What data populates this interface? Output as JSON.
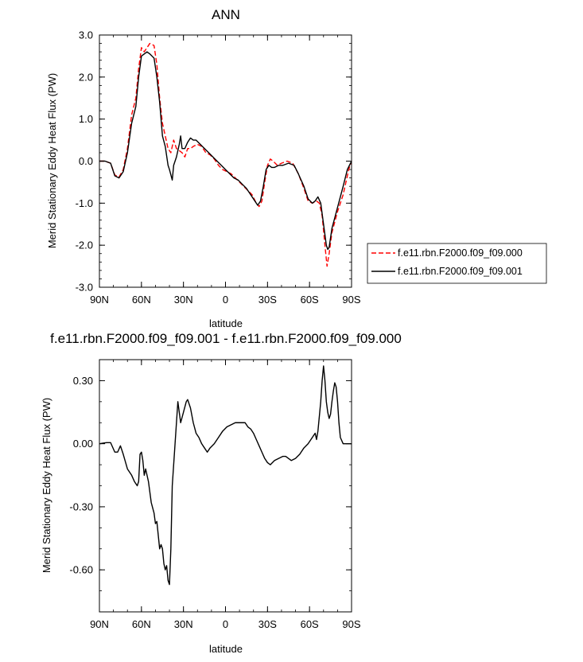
{
  "chart_data": [
    {
      "type": "line",
      "title": "ANN",
      "xlabel": "latitude",
      "ylabel": "Merid Stationary Eddy Heat Flux (PW)",
      "xlim": [
        90,
        -90
      ],
      "ylim": [
        -3.0,
        3.0
      ],
      "x_tick_values": [
        90,
        60,
        30,
        0,
        -30,
        -60,
        -90
      ],
      "x_tick_labels": [
        "90N",
        "60N",
        "30N",
        "0",
        "30S",
        "60S",
        "90S"
      ],
      "y_tick_values": [
        -3,
        -2,
        -1,
        0,
        1,
        2,
        3
      ],
      "y_tick_labels": [
        "-3.0",
        "-2.0",
        "-1.0",
        "0.0",
        "1.0",
        "2.0",
        "3.0"
      ],
      "legend_position": "right",
      "series": [
        {
          "name": "f.e11.rbn.F2000.f09_f09.000",
          "color": "#ff0000",
          "dash": "dashed",
          "points": [
            [
              90,
              0
            ],
            [
              86,
              0
            ],
            [
              82,
              -0.05
            ],
            [
              79,
              -0.33
            ],
            [
              76,
              -0.38
            ],
            [
              73,
              -0.2
            ],
            [
              70,
              0.3
            ],
            [
              67,
              1.1
            ],
            [
              64,
              1.5
            ],
            [
              62,
              2.2
            ],
            [
              60,
              2.7
            ],
            [
              58,
              2.6
            ],
            [
              56,
              2.7
            ],
            [
              54,
              2.8
            ],
            [
              51,
              2.75
            ],
            [
              49,
              2.3
            ],
            [
              47,
              1.5
            ],
            [
              45,
              0.9
            ],
            [
              43,
              0.6
            ],
            [
              41,
              0.3
            ],
            [
              39,
              0.2
            ],
            [
              37,
              0.5
            ],
            [
              35,
              0.3
            ],
            [
              33,
              0.25
            ],
            [
              31,
              0.2
            ],
            [
              29,
              0.1
            ],
            [
              27,
              0.3
            ],
            [
              25,
              0.3
            ],
            [
              23,
              0.35
            ],
            [
              20,
              0.4
            ],
            [
              17,
              0.35
            ],
            [
              14,
              0.2
            ],
            [
              11,
              0.15
            ],
            [
              8,
              0.05
            ],
            [
              5,
              -0.1
            ],
            [
              2,
              -0.2
            ],
            [
              -1,
              -0.25
            ],
            [
              -4,
              -0.3
            ],
            [
              -7,
              -0.4
            ],
            [
              -10,
              -0.5
            ],
            [
              -13,
              -0.6
            ],
            [
              -16,
              -0.7
            ],
            [
              -19,
              -0.8
            ],
            [
              -22,
              -1.0
            ],
            [
              -24,
              -1.08
            ],
            [
              -26,
              -0.95
            ],
            [
              -28,
              -0.5
            ],
            [
              -30,
              -0.1
            ],
            [
              -32,
              0.05
            ],
            [
              -34,
              0.0
            ],
            [
              -37,
              -0.1
            ],
            [
              -40,
              -0.05
            ],
            [
              -44,
              0.0
            ],
            [
              -48,
              -0.05
            ],
            [
              -52,
              -0.3
            ],
            [
              -56,
              -0.65
            ],
            [
              -59,
              -0.95
            ],
            [
              -62,
              -1.0
            ],
            [
              -65,
              -0.95
            ],
            [
              -67,
              -1.0
            ],
            [
              -69,
              -1.3
            ],
            [
              -71,
              -2.0
            ],
            [
              -72.5,
              -2.5
            ],
            [
              -74,
              -2.2
            ],
            [
              -76,
              -1.7
            ],
            [
              -80,
              -1.2
            ],
            [
              -84,
              -0.8
            ],
            [
              -88,
              -0.2
            ],
            [
              -90,
              0
            ]
          ]
        },
        {
          "name": "f.e11.rbn.F2000.f09_f09.001",
          "color": "#000000",
          "dash": "solid",
          "points": [
            [
              90,
              0
            ],
            [
              86,
              0
            ],
            [
              82,
              -0.05
            ],
            [
              79,
              -0.35
            ],
            [
              76,
              -0.4
            ],
            [
              73,
              -0.25
            ],
            [
              70,
              0.2
            ],
            [
              67,
              0.9
            ],
            [
              64,
              1.3
            ],
            [
              62,
              2.0
            ],
            [
              60,
              2.5
            ],
            [
              58,
              2.55
            ],
            [
              56,
              2.6
            ],
            [
              54,
              2.55
            ],
            [
              51,
              2.45
            ],
            [
              49,
              2.0
            ],
            [
              47,
              1.4
            ],
            [
              45,
              0.6
            ],
            [
              43,
              0.35
            ],
            [
              41,
              -0.1
            ],
            [
              40,
              -0.2
            ],
            [
              38,
              -0.45
            ],
            [
              37,
              -0.1
            ],
            [
              35,
              0.1
            ],
            [
              33,
              0.4
            ],
            [
              32,
              0.6
            ],
            [
              31,
              0.3
            ],
            [
              29,
              0.3
            ],
            [
              27,
              0.45
            ],
            [
              25,
              0.55
            ],
            [
              23,
              0.5
            ],
            [
              21,
              0.5
            ],
            [
              18,
              0.4
            ],
            [
              15,
              0.3
            ],
            [
              12,
              0.2
            ],
            [
              9,
              0.1
            ],
            [
              6,
              0.0
            ],
            [
              3,
              -0.1
            ],
            [
              0,
              -0.2
            ],
            [
              -3,
              -0.3
            ],
            [
              -6,
              -0.4
            ],
            [
              -9,
              -0.45
            ],
            [
              -12,
              -0.55
            ],
            [
              -15,
              -0.65
            ],
            [
              -18,
              -0.8
            ],
            [
              -21,
              -0.95
            ],
            [
              -23,
              -1.05
            ],
            [
              -25,
              -0.95
            ],
            [
              -27,
              -0.6
            ],
            [
              -29,
              -0.2
            ],
            [
              -31,
              -0.1
            ],
            [
              -33,
              -0.15
            ],
            [
              -35,
              -0.15
            ],
            [
              -38,
              -0.1
            ],
            [
              -41,
              -0.1
            ],
            [
              -45,
              -0.05
            ],
            [
              -49,
              -0.1
            ],
            [
              -52,
              -0.3
            ],
            [
              -56,
              -0.6
            ],
            [
              -59,
              -0.9
            ],
            [
              -62,
              -1.0
            ],
            [
              -64,
              -0.95
            ],
            [
              -66,
              -0.85
            ],
            [
              -68,
              -1.0
            ],
            [
              -70,
              -1.5
            ],
            [
              -72,
              -2.0
            ],
            [
              -73,
              -2.1
            ],
            [
              -74,
              -2.05
            ],
            [
              -76,
              -1.6
            ],
            [
              -80,
              -1.1
            ],
            [
              -84,
              -0.6
            ],
            [
              -87,
              -0.2
            ],
            [
              -90,
              0
            ]
          ]
        }
      ]
    },
    {
      "type": "line",
      "title": "f.e11.rbn.F2000.f09_f09.001 - f.e11.rbn.F2000.f09_f09.000",
      "xlabel": "latitude",
      "ylabel": "Merid Stationary Eddy Heat Flux (PW)",
      "xlim": [
        90,
        -90
      ],
      "ylim": [
        -0.8,
        0.4
      ],
      "x_tick_values": [
        90,
        60,
        30,
        0,
        -30,
        -60,
        -90
      ],
      "x_tick_labels": [
        "90N",
        "60N",
        "30N",
        "0",
        "30S",
        "60S",
        "90S"
      ],
      "y_tick_values": [
        -0.6,
        -0.3,
        0.0,
        0.3
      ],
      "y_tick_labels": [
        "-0.60",
        "-0.30",
        "0.00",
        "0.30"
      ],
      "series": [
        {
          "color": "#000000",
          "dash": "solid",
          "points": [
            [
              90,
              0
            ],
            [
              85,
              0.005
            ],
            [
              82,
              0.005
            ],
            [
              79,
              -0.04
            ],
            [
              77,
              -0.04
            ],
            [
              75,
              -0.01
            ],
            [
              73,
              -0.05
            ],
            [
              70,
              -0.12
            ],
            [
              67,
              -0.15
            ],
            [
              65,
              -0.18
            ],
            [
              63,
              -0.2
            ],
            [
              62,
              -0.18
            ],
            [
              61,
              -0.05
            ],
            [
              60,
              -0.04
            ],
            [
              59,
              -0.08
            ],
            [
              58,
              -0.15
            ],
            [
              57,
              -0.12
            ],
            [
              55,
              -0.18
            ],
            [
              53,
              -0.28
            ],
            [
              51,
              -0.33
            ],
            [
              50,
              -0.38
            ],
            [
              49,
              -0.37
            ],
            [
              47,
              -0.5
            ],
            [
              46,
              -0.48
            ],
            [
              45,
              -0.5
            ],
            [
              44,
              -0.57
            ],
            [
              43,
              -0.6
            ],
            [
              42,
              -0.58
            ],
            [
              41,
              -0.65
            ],
            [
              40,
              -0.67
            ],
            [
              39,
              -0.5
            ],
            [
              38,
              -0.2
            ],
            [
              36,
              0.0
            ],
            [
              35,
              0.1
            ],
            [
              34,
              0.2
            ],
            [
              33,
              0.15
            ],
            [
              32,
              0.1
            ],
            [
              30,
              0.15
            ],
            [
              28,
              0.2
            ],
            [
              27,
              0.21
            ],
            [
              25,
              0.17
            ],
            [
              23,
              0.1
            ],
            [
              21,
              0.05
            ],
            [
              19,
              0.03
            ],
            [
              17,
              0.0
            ],
            [
              15,
              -0.02
            ],
            [
              13,
              -0.04
            ],
            [
              11,
              -0.02
            ],
            [
              8,
              0.0
            ],
            [
              5,
              0.03
            ],
            [
              2,
              0.06
            ],
            [
              -1,
              0.08
            ],
            [
              -4,
              0.09
            ],
            [
              -7,
              0.1
            ],
            [
              -10,
              0.1
            ],
            [
              -12,
              0.1
            ],
            [
              -14,
              0.1
            ],
            [
              -16,
              0.08
            ],
            [
              -18,
              0.07
            ],
            [
              -20,
              0.05
            ],
            [
              -22,
              0.02
            ],
            [
              -24,
              -0.01
            ],
            [
              -26,
              -0.04
            ],
            [
              -28,
              -0.07
            ],
            [
              -30,
              -0.09
            ],
            [
              -32,
              -0.1
            ],
            [
              -35,
              -0.08
            ],
            [
              -38,
              -0.07
            ],
            [
              -41,
              -0.06
            ],
            [
              -43,
              -0.06
            ],
            [
              -45,
              -0.07
            ],
            [
              -47,
              -0.08
            ],
            [
              -50,
              -0.07
            ],
            [
              -53,
              -0.05
            ],
            [
              -56,
              -0.02
            ],
            [
              -59,
              0.0
            ],
            [
              -61,
              0.02
            ],
            [
              -63,
              0.04
            ],
            [
              -64,
              0.05
            ],
            [
              -65,
              0.02
            ],
            [
              -66,
              0.06
            ],
            [
              -68,
              0.2
            ],
            [
              -69,
              0.3
            ],
            [
              -70,
              0.37
            ],
            [
              -71,
              0.3
            ],
            [
              -72,
              0.2
            ],
            [
              -73,
              0.15
            ],
            [
              -74,
              0.12
            ],
            [
              -75,
              0.14
            ],
            [
              -76,
              0.2
            ],
            [
              -77,
              0.25
            ],
            [
              -78,
              0.29
            ],
            [
              -79,
              0.27
            ],
            [
              -80,
              0.2
            ],
            [
              -81,
              0.1
            ],
            [
              -82,
              0.03
            ],
            [
              -84,
              0.0
            ],
            [
              -87,
              0.0
            ],
            [
              -90,
              0
            ]
          ]
        }
      ]
    }
  ]
}
